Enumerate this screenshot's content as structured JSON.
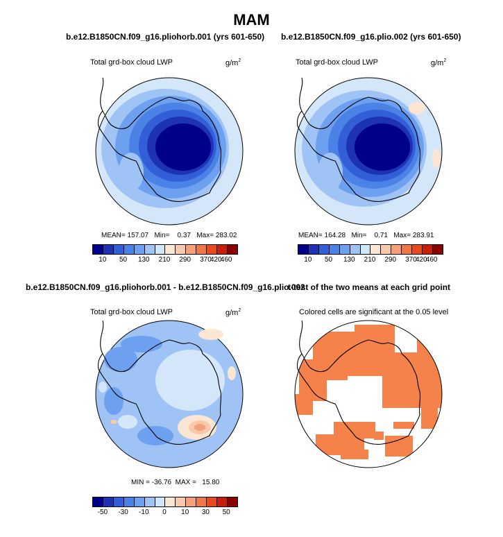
{
  "page_title": "MAM",
  "panels": [
    {
      "title": "b.e12.B1850CN.f09_g16.pliohorb.001 (yrs 601-650)",
      "subtitle": "Total grd-box cloud LWP",
      "units_base": "g/m",
      "units_exp": "2",
      "stats": {
        "mean_label": "MEAN=",
        "mean": "157.07",
        "min_label": "Min=",
        "min": "0.37",
        "max_label": "Max=",
        "max": "283.02"
      }
    },
    {
      "title": "b.e12.B1850CN.f09_g16.plio.002 (yrs 601-650)",
      "subtitle": "Total grd-box cloud LWP",
      "units_base": "g/m",
      "units_exp": "2",
      "stats": {
        "mean_label": "MEAN=",
        "mean": "164.28",
        "min_label": "Min=",
        "min": "0.71",
        "max_label": "Max=",
        "max": "283.91"
      }
    },
    {
      "title": "b.e12.B1850CN.f09_g16.pliohorb.001 - b.e12.B1850CN.f09_g16.plio.002",
      "subtitle": "Total grd-box cloud LWP",
      "units_base": "g/m",
      "units_exp": "2",
      "stats": {
        "min_label": "MIN =",
        "min": "-36.76",
        "max_label": "MAX =",
        "max": "15.80"
      }
    },
    {
      "title": "t-test of the two means at each grid point",
      "subtitle": "Colored cells are significant at the 0.05 level"
    }
  ],
  "colorbars": {
    "absolute": {
      "colors": [
        "#00008b",
        "#1e32b4",
        "#325fd7",
        "#4b82e6",
        "#6ea0f0",
        "#a0c3f5",
        "#d2e6fa",
        "#fae6d2",
        "#fac8aa",
        "#f5a078",
        "#f07846",
        "#e64b1e",
        "#c81e0a",
        "#8b0000"
      ],
      "ticks": [
        "10",
        "50",
        "130",
        "210",
        "290",
        "370",
        "420",
        "460"
      ]
    },
    "difference": {
      "colors": [
        "#00008b",
        "#1e32b4",
        "#325fd7",
        "#4b82e6",
        "#6ea0f0",
        "#a0c3f5",
        "#d2e6fa",
        "#fae6d2",
        "#fac8aa",
        "#f5a078",
        "#f07846",
        "#e64b1e",
        "#c81e0a",
        "#8b0000"
      ],
      "ticks": [
        "-50",
        "-30",
        "-10",
        "0",
        "10",
        "30",
        "50"
      ]
    },
    "significance_color": "#f5824b",
    "ocean_color": "#d4e6fa"
  }
}
